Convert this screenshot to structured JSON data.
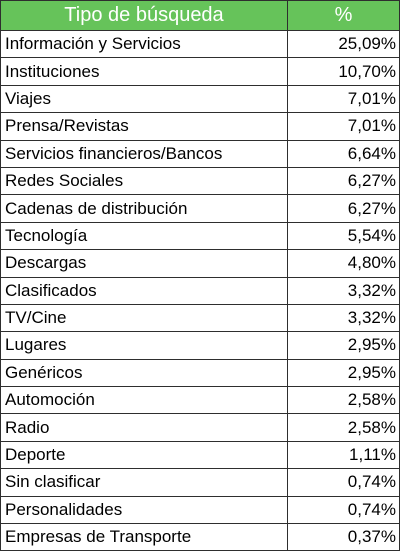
{
  "header": {
    "col_type": "Tipo de búsqueda",
    "col_pct": "%"
  },
  "rows": [
    {
      "label": "Información y Servicios",
      "value": "25,09%"
    },
    {
      "label": "Instituciones",
      "value": "10,70%"
    },
    {
      "label": "Viajes",
      "value": "7,01%"
    },
    {
      "label": "Prensa/Revistas",
      "value": "7,01%"
    },
    {
      "label": "Servicios financieros/Bancos",
      "value": "6,64%"
    },
    {
      "label": "Redes Sociales",
      "value": "6,27%"
    },
    {
      "label": "Cadenas de distribución",
      "value": "6,27%"
    },
    {
      "label": "Tecnología",
      "value": "5,54%"
    },
    {
      "label": "Descargas",
      "value": "4,80%"
    },
    {
      "label": "Clasificados",
      "value": "3,32%"
    },
    {
      "label": "TV/Cine",
      "value": "3,32%"
    },
    {
      "label": "Lugares",
      "value": "2,95%"
    },
    {
      "label": "Genéricos",
      "value": "2,95%"
    },
    {
      "label": "Automoción",
      "value": "2,58%"
    },
    {
      "label": "Radio",
      "value": "2,58%"
    },
    {
      "label": "Deporte",
      "value": "1,11%"
    },
    {
      "label": "Sin clasificar",
      "value": "0,74%"
    },
    {
      "label": "Personalidades",
      "value": "0,74%"
    },
    {
      "label": "Empresas de Transporte",
      "value": "0,37%"
    }
  ],
  "colors": {
    "header_bg": "#66c35a",
    "header_text": "#ffffff",
    "border": "#2e2e2e"
  }
}
